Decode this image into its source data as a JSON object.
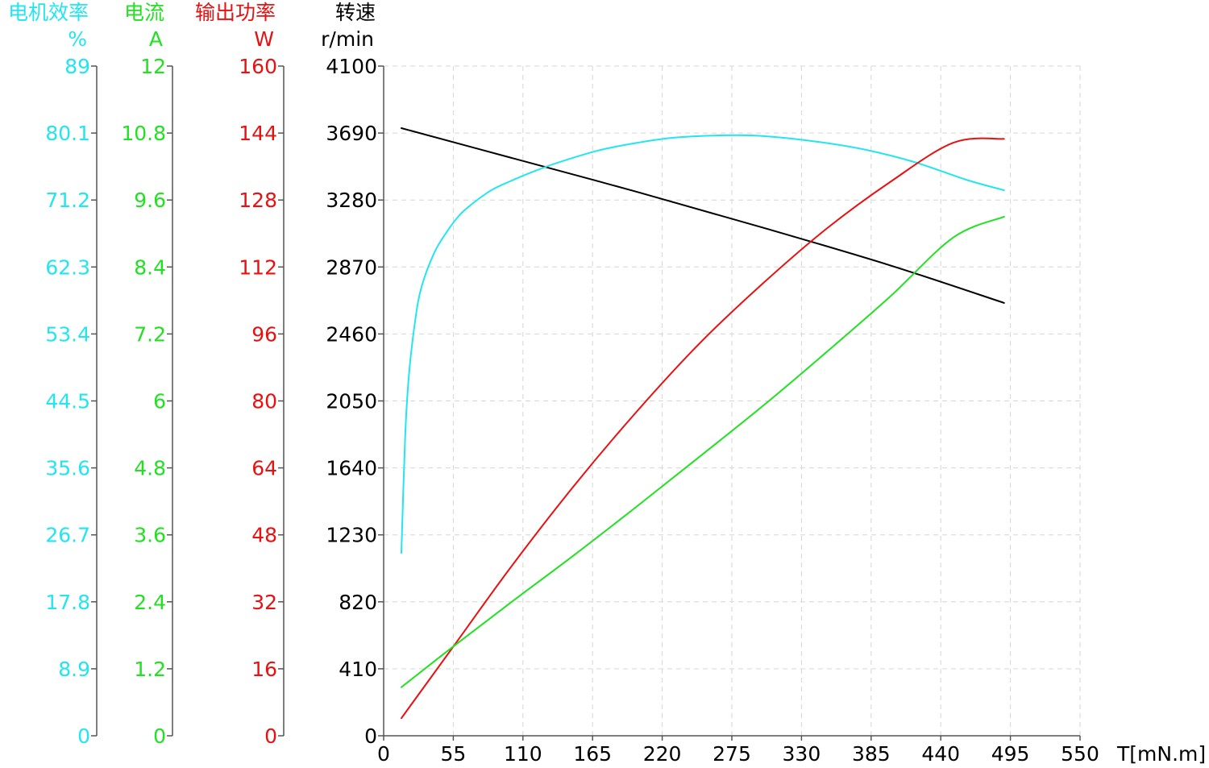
{
  "chart_data": {
    "type": "line",
    "x_axis": {
      "label": "T[mN.m]",
      "range": [
        0,
        550
      ],
      "ticks": [
        0,
        55,
        110,
        165,
        220,
        275,
        330,
        385,
        440,
        495,
        550
      ]
    },
    "y_axes": [
      {
        "id": "efficiency",
        "title": "电机效率",
        "unit": "%",
        "color": "#22e5f0",
        "range": [
          0,
          89
        ],
        "tick_labels": [
          "0",
          "8.9",
          "17.8",
          "26.7",
          "35.6",
          "44.5",
          "53.4",
          "62.3",
          "71.2",
          "80.1",
          "89"
        ]
      },
      {
        "id": "current",
        "title": "电流",
        "unit": "A",
        "color": "#22e022",
        "range": [
          0,
          12
        ],
        "tick_labels": [
          "0",
          "1.2",
          "2.4",
          "3.6",
          "4.8",
          "6",
          "7.2",
          "8.4",
          "9.6",
          "10.8",
          "12"
        ]
      },
      {
        "id": "power",
        "title": "输出功率",
        "unit": "W",
        "color": "#e81010",
        "range": [
          0,
          160
        ],
        "tick_labels": [
          "0",
          "16",
          "32",
          "48",
          "64",
          "80",
          "96",
          "112",
          "128",
          "144",
          "160"
        ]
      },
      {
        "id": "speed",
        "title": "转速",
        "unit": "r/min",
        "color": "#000000",
        "range": [
          0,
          4100
        ],
        "tick_labels": [
          "0",
          "410",
          "820",
          "1230",
          "1640",
          "2050",
          "2460",
          "2870",
          "3280",
          "3690",
          "4100"
        ]
      }
    ],
    "grid": true,
    "series": [
      {
        "axis": "speed",
        "color": "#000000",
        "x": [
          14,
          100,
          200,
          300,
          400,
          490
        ],
        "y": [
          3720,
          3540,
          3330,
          3110,
          2880,
          2650
        ]
      },
      {
        "axis": "efficiency",
        "color": "#22e5f0",
        "x": [
          14,
          17,
          20,
          25,
          30,
          40,
          50,
          60,
          70,
          85,
          100,
          120,
          140,
          170,
          200,
          230,
          270,
          300,
          340,
          380,
          420,
          460,
          490
        ],
        "y": [
          24.3,
          39.8,
          48.0,
          55.3,
          59.7,
          64.2,
          67.0,
          69.2,
          70.7,
          72.5,
          73.7,
          75.1,
          76.3,
          77.8,
          78.8,
          79.5,
          79.8,
          79.7,
          79.0,
          77.9,
          76.2,
          73.9,
          72.5
        ]
      },
      {
        "axis": "power",
        "color": "#e81010",
        "x": [
          14,
          55,
          100,
          150,
          200,
          250,
          300,
          350,
          400,
          450,
          490
        ],
        "y": [
          4.2,
          21.3,
          40.1,
          59.6,
          77.5,
          93.9,
          108.2,
          121.2,
          132.3,
          141.7,
          142.6
        ]
      },
      {
        "axis": "current",
        "color": "#22e022",
        "x": [
          14,
          55,
          100,
          150,
          200,
          250,
          300,
          350,
          400,
          450,
          490
        ],
        "y": [
          0.87,
          1.6,
          2.38,
          3.23,
          4.11,
          5.01,
          5.92,
          6.88,
          7.87,
          8.93,
          9.3
        ]
      }
    ]
  }
}
